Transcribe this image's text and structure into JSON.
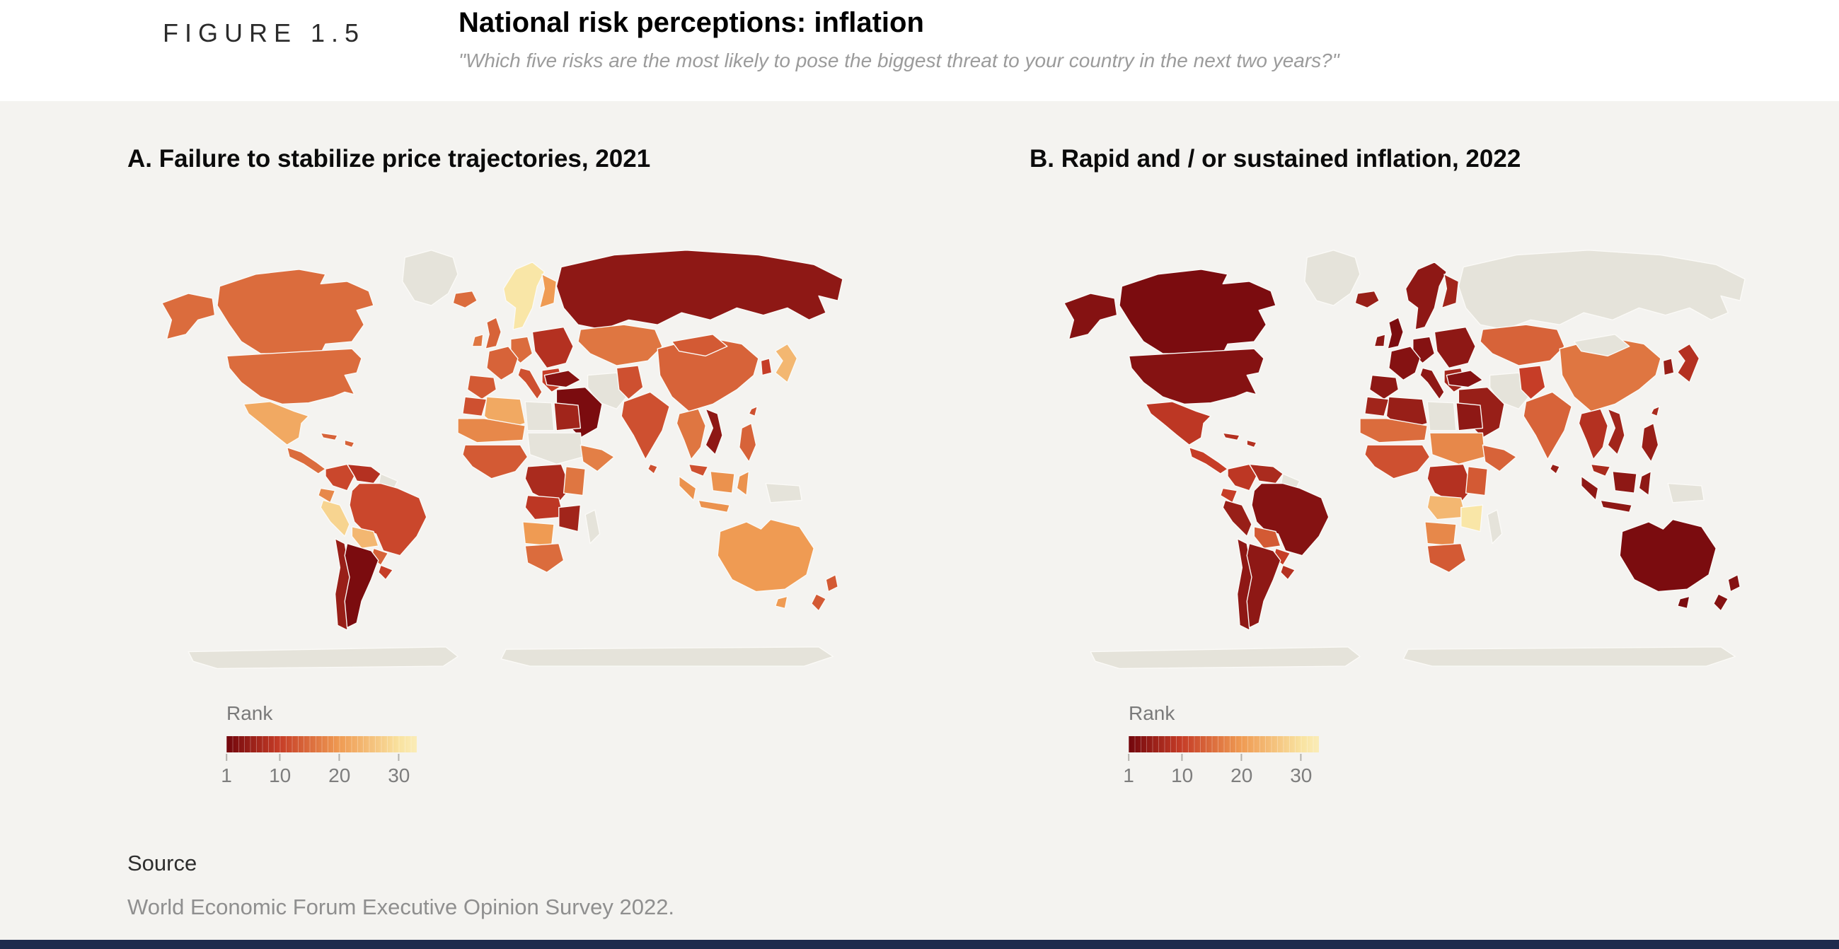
{
  "header": {
    "figure_label": "FIGURE 1.5",
    "title": "National risk perceptions: inflation",
    "subtitle": "\"Which five risks are the most likely to pose the biggest threat to your country in the next two years?\""
  },
  "source": {
    "label": "Source",
    "text": "World Economic Forum Executive Opinion Survey 2022."
  },
  "footer_bar_color": "#1e2b4d",
  "background_colors": {
    "header": "#ffffff",
    "body": "#f4f3f0"
  },
  "chart_data": {
    "type": "heatmap",
    "subtype": "choropleth_world_map_pair",
    "value_meaning": "National rank of the risk (1 = most likely biggest threat, ~33 = lowest shown); gray = no data",
    "panels": [
      {
        "label": "A",
        "title": "A. Failure to stabilize price trajectories, 2021",
        "risk": "Failure to stabilize price trajectories",
        "year": 2021,
        "rank_key": "rank_2021"
      },
      {
        "label": "B",
        "title": "B. Rapid and / or sustained inflation, 2022",
        "risk": "Rapid and / or sustained inflation",
        "year": 2022,
        "rank_key": "rank_2022"
      }
    ],
    "scale": {
      "label": "Rank",
      "min": 1,
      "max": 33,
      "ticks": [
        1,
        10,
        20,
        30
      ],
      "gradient_stops": [
        {
          "t": 0.0,
          "color": "#72060c"
        },
        {
          "t": 0.28,
          "color": "#c63d27"
        },
        {
          "t": 0.59,
          "color": "#ef9a52"
        },
        {
          "t": 0.91,
          "color": "#f9e3a0"
        },
        {
          "t": 1.0,
          "color": "#faecb8"
        }
      ],
      "no_data_color": "#e5e3da",
      "border_color": "#fbfaf7"
    },
    "regions": [
      {
        "id": "antarctica",
        "name": "Antarctica",
        "rank_2021": null,
        "rank_2022": null
      },
      {
        "id": "greenland",
        "name": "Greenland",
        "rank_2021": null,
        "rank_2022": null
      },
      {
        "id": "russia",
        "name": "Russia",
        "rank_2021": 4,
        "rank_2022": null
      },
      {
        "id": "canada",
        "name": "Canada",
        "rank_2021": 15,
        "rank_2022": 2
      },
      {
        "id": "alaska",
        "name": "United States (Alaska)",
        "rank_2021": 15,
        "rank_2022": 3
      },
      {
        "id": "usa",
        "name": "United States",
        "rank_2021": 15,
        "rank_2022": 3
      },
      {
        "id": "mexico",
        "name": "Mexico",
        "rank_2021": 22,
        "rank_2022": 9
      },
      {
        "id": "central-america",
        "name": "Central America",
        "rank_2021": 15,
        "rank_2022": 10
      },
      {
        "id": "caribbean",
        "name": "Caribbean",
        "rank_2021": 14,
        "rank_2022": 8
      },
      {
        "id": "colombia",
        "name": "Colombia",
        "rank_2021": 11,
        "rank_2022": 9
      },
      {
        "id": "venezuela",
        "name": "Venezuela",
        "rank_2021": 8,
        "rank_2022": 7
      },
      {
        "id": "guyanas",
        "name": "Guyanas",
        "rank_2021": null,
        "rank_2022": null
      },
      {
        "id": "ecuador",
        "name": "Ecuador",
        "rank_2021": 18,
        "rank_2022": 10
      },
      {
        "id": "peru",
        "name": "Peru",
        "rank_2021": 28,
        "rank_2022": 5
      },
      {
        "id": "brazil",
        "name": "Brazil",
        "rank_2021": 11,
        "rank_2022": 3
      },
      {
        "id": "bolivia",
        "name": "Bolivia",
        "rank_2021": 24,
        "rank_2022": 13
      },
      {
        "id": "paraguay",
        "name": "Paraguay",
        "rank_2021": 14,
        "rank_2022": 10
      },
      {
        "id": "uruguay",
        "name": "Uruguay",
        "rank_2021": 10,
        "rank_2022": 8
      },
      {
        "id": "chile",
        "name": "Chile",
        "rank_2021": 5,
        "rank_2022": 4
      },
      {
        "id": "argentina",
        "name": "Argentina",
        "rank_2021": 2,
        "rank_2022": 4
      },
      {
        "id": "scandinavia",
        "name": "Norway / Sweden",
        "rank_2021": 31,
        "rank_2022": 4
      },
      {
        "id": "finland",
        "name": "Finland",
        "rank_2021": 20,
        "rank_2022": 6
      },
      {
        "id": "east-europe",
        "name": "Eastern Europe",
        "rank_2021": 8,
        "rank_2022": 4
      },
      {
        "id": "germany-central",
        "name": "Germany / Central Europe",
        "rank_2021": 15,
        "rank_2022": 3
      },
      {
        "id": "west-europe",
        "name": "France / Benelux",
        "rank_2021": 14,
        "rank_2022": 3
      },
      {
        "id": "iberia",
        "name": "Spain / Portugal",
        "rank_2021": 13,
        "rank_2022": 4
      },
      {
        "id": "italy",
        "name": "Italy",
        "rank_2021": 12,
        "rank_2022": 4
      },
      {
        "id": "balkans",
        "name": "Balkans / Greece",
        "rank_2021": 10,
        "rank_2022": 6
      },
      {
        "id": "uk",
        "name": "United Kingdom",
        "rank_2021": 14,
        "rank_2022": 2
      },
      {
        "id": "ireland",
        "name": "Ireland",
        "rank_2021": 16,
        "rank_2022": 4
      },
      {
        "id": "iceland",
        "name": "Iceland",
        "rank_2021": 15,
        "rank_2022": 5
      },
      {
        "id": "central-asia",
        "name": "Central Asia",
        "rank_2021": 16,
        "rank_2022": 14
      },
      {
        "id": "iran",
        "name": "Iran",
        "rank_2021": null,
        "rank_2022": null
      },
      {
        "id": "pakistan",
        "name": "Pakistan / Afghanistan",
        "rank_2021": 12,
        "rank_2022": 10
      },
      {
        "id": "middle-east",
        "name": "Saudi Arabia / Gulf",
        "rank_2021": 2,
        "rank_2022": 5
      },
      {
        "id": "turkey",
        "name": "Türkiye",
        "rank_2021": 3,
        "rank_2022": 3
      },
      {
        "id": "morocco",
        "name": "Morocco",
        "rank_2021": 12,
        "rank_2022": 6
      },
      {
        "id": "algeria",
        "name": "Algeria",
        "rank_2021": 22,
        "rank_2022": 5
      },
      {
        "id": "libya",
        "name": "Libya",
        "rank_2021": null,
        "rank_2022": null
      },
      {
        "id": "egypt",
        "name": "Egypt",
        "rank_2021": 6,
        "rank_2022": 4
      },
      {
        "id": "sahel-west",
        "name": "Sahel (Mali / Niger)",
        "rank_2021": 18,
        "rank_2022": 15
      },
      {
        "id": "west-africa-coast",
        "name": "West Africa",
        "rank_2021": 13,
        "rank_2022": 12
      },
      {
        "id": "chad-sudan",
        "name": "Chad / Sudan",
        "rank_2021": null,
        "rank_2022": 18
      },
      {
        "id": "horn-africa",
        "name": "Horn of Africa",
        "rank_2021": 17,
        "rank_2022": 14
      },
      {
        "id": "drc-congo",
        "name": "DR Congo",
        "rank_2021": 7,
        "rank_2022": 8
      },
      {
        "id": "east-africa",
        "name": "Kenya / Tanzania",
        "rank_2021": 16,
        "rank_2022": 13
      },
      {
        "id": "angola-zambia",
        "name": "Angola / Zambia",
        "rank_2021": 9,
        "rank_2022": 24
      },
      {
        "id": "zimbabwe-moz",
        "name": "Zimbabwe / Mozambique",
        "rank_2021": 6,
        "rank_2022": 31
      },
      {
        "id": "namibia-botswana",
        "name": "Namibia / Botswana",
        "rank_2021": 20,
        "rank_2022": 18
      },
      {
        "id": "south-africa",
        "name": "South Africa",
        "rank_2021": 15,
        "rank_2022": 13
      },
      {
        "id": "madagascar",
        "name": "Madagascar",
        "rank_2021": null,
        "rank_2022": null
      },
      {
        "id": "china",
        "name": "China",
        "rank_2021": 14,
        "rank_2022": 16
      },
      {
        "id": "mongolia",
        "name": "Mongolia",
        "rank_2021": 13,
        "rank_2022": null
      },
      {
        "id": "india",
        "name": "India",
        "rank_2021": 12,
        "rank_2022": 14
      },
      {
        "id": "sri-lanka",
        "name": "Sri Lanka",
        "rank_2021": 12,
        "rank_2022": 5
      },
      {
        "id": "myanmar-thailand",
        "name": "Thailand / Myanmar",
        "rank_2021": 16,
        "rank_2022": 8
      },
      {
        "id": "vietnam",
        "name": "Viet Nam",
        "rank_2021": 4,
        "rank_2022": 6
      },
      {
        "id": "malaysia",
        "name": "Malaysia",
        "rank_2021": 12,
        "rank_2022": 7
      },
      {
        "id": "indonesia",
        "name": "Indonesia",
        "rank_2021": 19,
        "rank_2022": 4
      },
      {
        "id": "philippines",
        "name": "Philippines",
        "rank_2021": 14,
        "rank_2022": 5
      },
      {
        "id": "new-guinea",
        "name": "Papua New Guinea",
        "rank_2021": null,
        "rank_2022": null
      },
      {
        "id": "korea",
        "name": "South Korea",
        "rank_2021": 10,
        "rank_2022": 5
      },
      {
        "id": "japan",
        "name": "Japan",
        "rank_2021": 24,
        "rank_2022": 8
      },
      {
        "id": "taiwan",
        "name": "Taiwan",
        "rank_2021": 12,
        "rank_2022": 7
      },
      {
        "id": "australia",
        "name": "Australia",
        "rank_2021": 20,
        "rank_2022": 2
      },
      {
        "id": "new-zealand",
        "name": "New Zealand",
        "rank_2021": 13,
        "rank_2022": 3
      }
    ]
  }
}
